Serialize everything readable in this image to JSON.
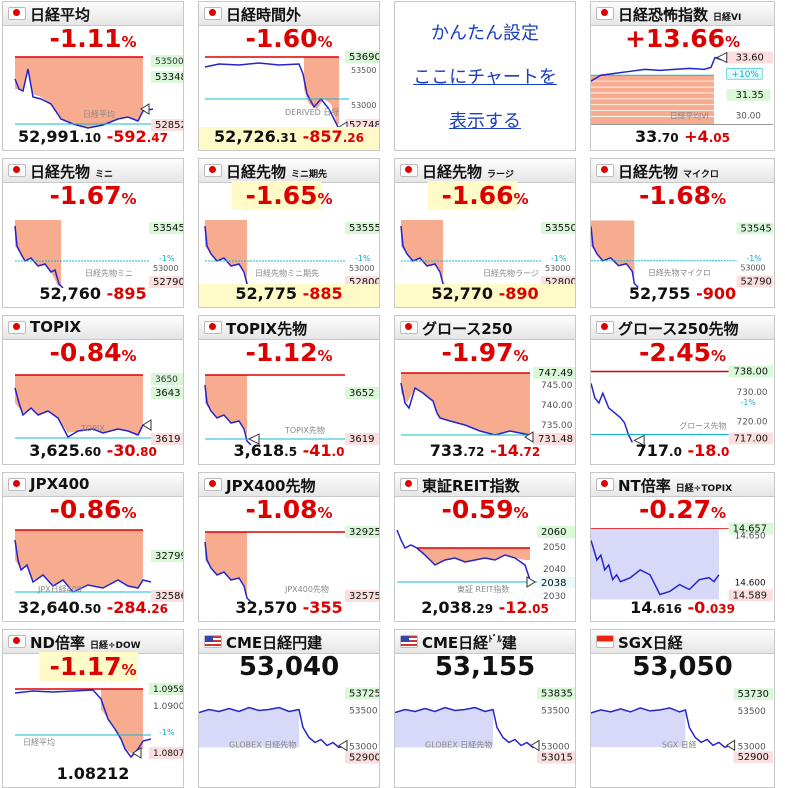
{
  "cards": [
    {
      "title": "日経平均",
      "sub": "",
      "change": "-1.11",
      "pct": "%",
      "price": "52,991",
      "price_frac": ".10",
      "diff": "-592",
      "diff_frac": ".47",
      "labels": [
        "53500",
        "53348",
        "52852"
      ],
      "watermark": "日経平均",
      "flag": "jp"
    },
    {
      "title": "日経時間外",
      "sub": "",
      "change": "-1.60",
      "pct": "%",
      "price": "52,726",
      "price_frac": ".31",
      "diff": "-857",
      "diff_frac": ".26",
      "labels": [
        "53690",
        "53500",
        "53000",
        "52748"
      ],
      "watermark": "DERIVED 日経",
      "flag": "jp"
    },
    {
      "title": "",
      "settings": [
        "かんたん設定",
        "ここにチャートを",
        "表示する"
      ]
    },
    {
      "title": "日経恐怖指数",
      "sub": "日経VI",
      "change": "+13.66",
      "pct": "%",
      "price": "33",
      "price_frac": ".70",
      "diff": "+4",
      "diff_frac": ".05",
      "labels": [
        "33.60",
        "+10%",
        "31.35",
        "30.00"
      ],
      "watermark": "日経平均VI",
      "flag": "jp"
    },
    {
      "title": "日経先物",
      "sub": "ミニ",
      "change": "-1.67",
      "pct": "%",
      "price": "52,760",
      "price_frac": "",
      "diff": "-895",
      "diff_frac": "",
      "labels": [
        "53545",
        "-1%",
        "53000",
        "52790"
      ],
      "watermark": "日経先物ミニ",
      "flag": "jp"
    },
    {
      "title": "日経先物",
      "sub": "ミニ期先",
      "change": "-1.65",
      "pct": "%",
      "price": "52,775",
      "price_frac": "",
      "diff": "-885",
      "diff_frac": "",
      "labels": [
        "53555",
        "-1%",
        "53000",
        "52800"
      ],
      "watermark": "日経先物ミニ期先",
      "flag": "jp"
    },
    {
      "title": "日経先物",
      "sub": "ラージ",
      "change": "-1.66",
      "pct": "%",
      "price": "52,770",
      "price_frac": "",
      "diff": "-890",
      "diff_frac": "",
      "labels": [
        "53550",
        "-1%",
        "53000",
        "52800"
      ],
      "watermark": "日経先物ラージ",
      "flag": "jp"
    },
    {
      "title": "日経先物",
      "sub": "マイクロ",
      "change": "-1.68",
      "pct": "%",
      "price": "52,755",
      "price_frac": "",
      "diff": "-900",
      "diff_frac": "",
      "labels": [
        "53545",
        "-1%",
        "53000",
        "52790"
      ],
      "watermark": "日経先物マイクロ",
      "flag": "jp"
    },
    {
      "title": "TOPIX",
      "sub": "",
      "change": "-0.84",
      "pct": "%",
      "price": "3,625",
      "price_frac": ".60",
      "diff": "-30",
      "diff_frac": ".80",
      "labels": [
        "3650",
        "3643",
        "3619"
      ],
      "watermark": "TOPIX",
      "flag": "jp"
    },
    {
      "title": "TOPIX先物",
      "sub": "",
      "change": "-1.12",
      "pct": "%",
      "price": "3,618",
      "price_frac": ".5",
      "diff": "-41",
      "diff_frac": ".0",
      "labels": [
        "3652",
        "3619"
      ],
      "watermark": "TOPIX先物",
      "flag": "jp"
    },
    {
      "title": "グロース250",
      "sub": "",
      "change": "-1.97",
      "pct": "%",
      "price": "733",
      "price_frac": ".72",
      "diff": "-14",
      "diff_frac": ".72",
      "labels": [
        "747.49",
        "745.00",
        "740.00",
        "735.00",
        "731.48"
      ],
      "watermark": "",
      "flag": "jp"
    },
    {
      "title": "グロース250先物",
      "sub": "",
      "change": "-2.45",
      "pct": "%",
      "price": "717",
      "price_frac": ".0",
      "diff": "-18",
      "diff_frac": ".0",
      "labels": [
        "738.00",
        "730.00",
        "-1%",
        "720.00",
        "717.00"
      ],
      "watermark": "グロース先物",
      "flag": "jp"
    },
    {
      "title": "JPX400",
      "sub": "",
      "change": "-0.86",
      "pct": "%",
      "price": "32,640",
      "price_frac": ".50",
      "diff": "-284",
      "diff_frac": ".26",
      "labels": [
        "32799",
        "32586"
      ],
      "watermark": "JPX日経400",
      "flag": "jp"
    },
    {
      "title": "JPX400先物",
      "sub": "",
      "change": "-1.08",
      "pct": "%",
      "price": "32,570",
      "price_frac": "",
      "diff": "-355",
      "diff_frac": "",
      "labels": [
        "32925",
        "32575"
      ],
      "watermark": "JPX400先物",
      "flag": "jp"
    },
    {
      "title": "東証REIT指数",
      "sub": "",
      "change": "-0.59",
      "pct": "%",
      "price": "2,038",
      "price_frac": ".29",
      "diff": "-12",
      "diff_frac": ".05",
      "labels": [
        "2060",
        "2050",
        "2040",
        "2038",
        "2030"
      ],
      "watermark": "東証 REIT指数",
      "flag": "jp"
    },
    {
      "title": "NT倍率",
      "sub": "日経÷TOPIX",
      "change": "-0.27",
      "pct": "%",
      "price": "14",
      "price_frac": ".616",
      "diff": "-0",
      "diff_frac": ".039",
      "labels": [
        "14.657",
        "14.650",
        "14.600",
        "14.589"
      ],
      "watermark": "",
      "flag": "jp"
    },
    {
      "title": "ND倍率",
      "sub": "日経÷DOW",
      "change": "-1.17",
      "pct": "%",
      "price": "1.08212",
      "price_frac": "",
      "diff": "",
      "diff_frac": "",
      "labels": [
        "1.0959",
        "1.0900",
        "-1%",
        "1.0807"
      ],
      "watermark": "日経平均",
      "flag": "jp"
    },
    {
      "title": "CME日経円建",
      "sub": "",
      "bigprice": "53,040",
      "labels": [
        "53725",
        "53500",
        "53000",
        "52900"
      ],
      "watermark": "GLOBEX 日経先物",
      "flag": "us"
    },
    {
      "title": "CME日経",
      "sub": "",
      "title_suffix": "ﾄﾞﾙ",
      "title_tail": "建",
      "bigprice": "53,155",
      "labels": [
        "53835",
        "53500",
        "53000",
        "53015"
      ],
      "watermark": "GLOBEX 日経先物",
      "flag": "us"
    },
    {
      "title": "SGX日経",
      "sub": "",
      "bigprice": "53,050",
      "labels": [
        "53730",
        "53500",
        "53000",
        "52900"
      ],
      "watermark": "SGX 日経",
      "flag": "sg"
    }
  ],
  "colors": {
    "down": "#dd0000",
    "red_fill": "#f7ab8f",
    "blue_fill": "#d8d8f8",
    "line": "#2424cc",
    "cyan": "#11bbcc",
    "yellow": "#fffbc8"
  }
}
